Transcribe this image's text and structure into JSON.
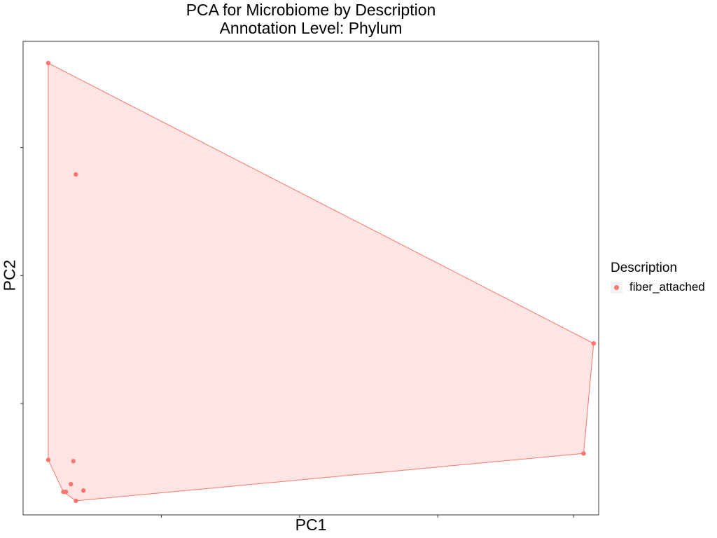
{
  "title_line1": "PCA for Microbiome by Description",
  "title_line2": "Annotation Level: Phylum",
  "chart_data": {
    "type": "scatter",
    "title": "PCA for Microbiome by Description\nAnnotation Level: Phylum",
    "xlabel": "PC1",
    "ylabel": "PC2",
    "xlim": [
      -0.19,
      2.1
    ],
    "ylim": [
      -1.87,
      1.83
    ],
    "x_ticks": [
      0.36,
      0.91,
      1.46,
      2.0
    ],
    "y_ticks": [
      -1.0,
      0.0,
      1.0
    ],
    "tick_labels_visible": false,
    "grid": false,
    "legend": {
      "title": "Description",
      "position": "right"
    },
    "series": [
      {
        "name": "fiber_attached",
        "color": "#F8766D",
        "hull_fill": "#F8766D",
        "hull_fill_opacity": 0.2,
        "points": [
          {
            "x": -0.09,
            "y": 1.66
          },
          {
            "x": 0.02,
            "y": 0.79
          },
          {
            "x": -0.09,
            "y": -1.44
          },
          {
            "x": 0.01,
            "y": -1.45
          },
          {
            "x": 0.0,
            "y": -1.63
          },
          {
            "x": -0.02,
            "y": -1.69
          },
          {
            "x": -0.03,
            "y": -1.69
          },
          {
            "x": 0.05,
            "y": -1.68
          },
          {
            "x": 0.02,
            "y": -1.76
          },
          {
            "x": 2.08,
            "y": -0.53
          },
          {
            "x": 2.04,
            "y": -1.39
          }
        ],
        "hull": [
          {
            "x": -0.09,
            "y": 1.66
          },
          {
            "x": 2.08,
            "y": -0.53
          },
          {
            "x": 2.04,
            "y": -1.39
          },
          {
            "x": 0.02,
            "y": -1.76
          },
          {
            "x": -0.03,
            "y": -1.69
          },
          {
            "x": -0.09,
            "y": -1.44
          }
        ]
      }
    ]
  }
}
